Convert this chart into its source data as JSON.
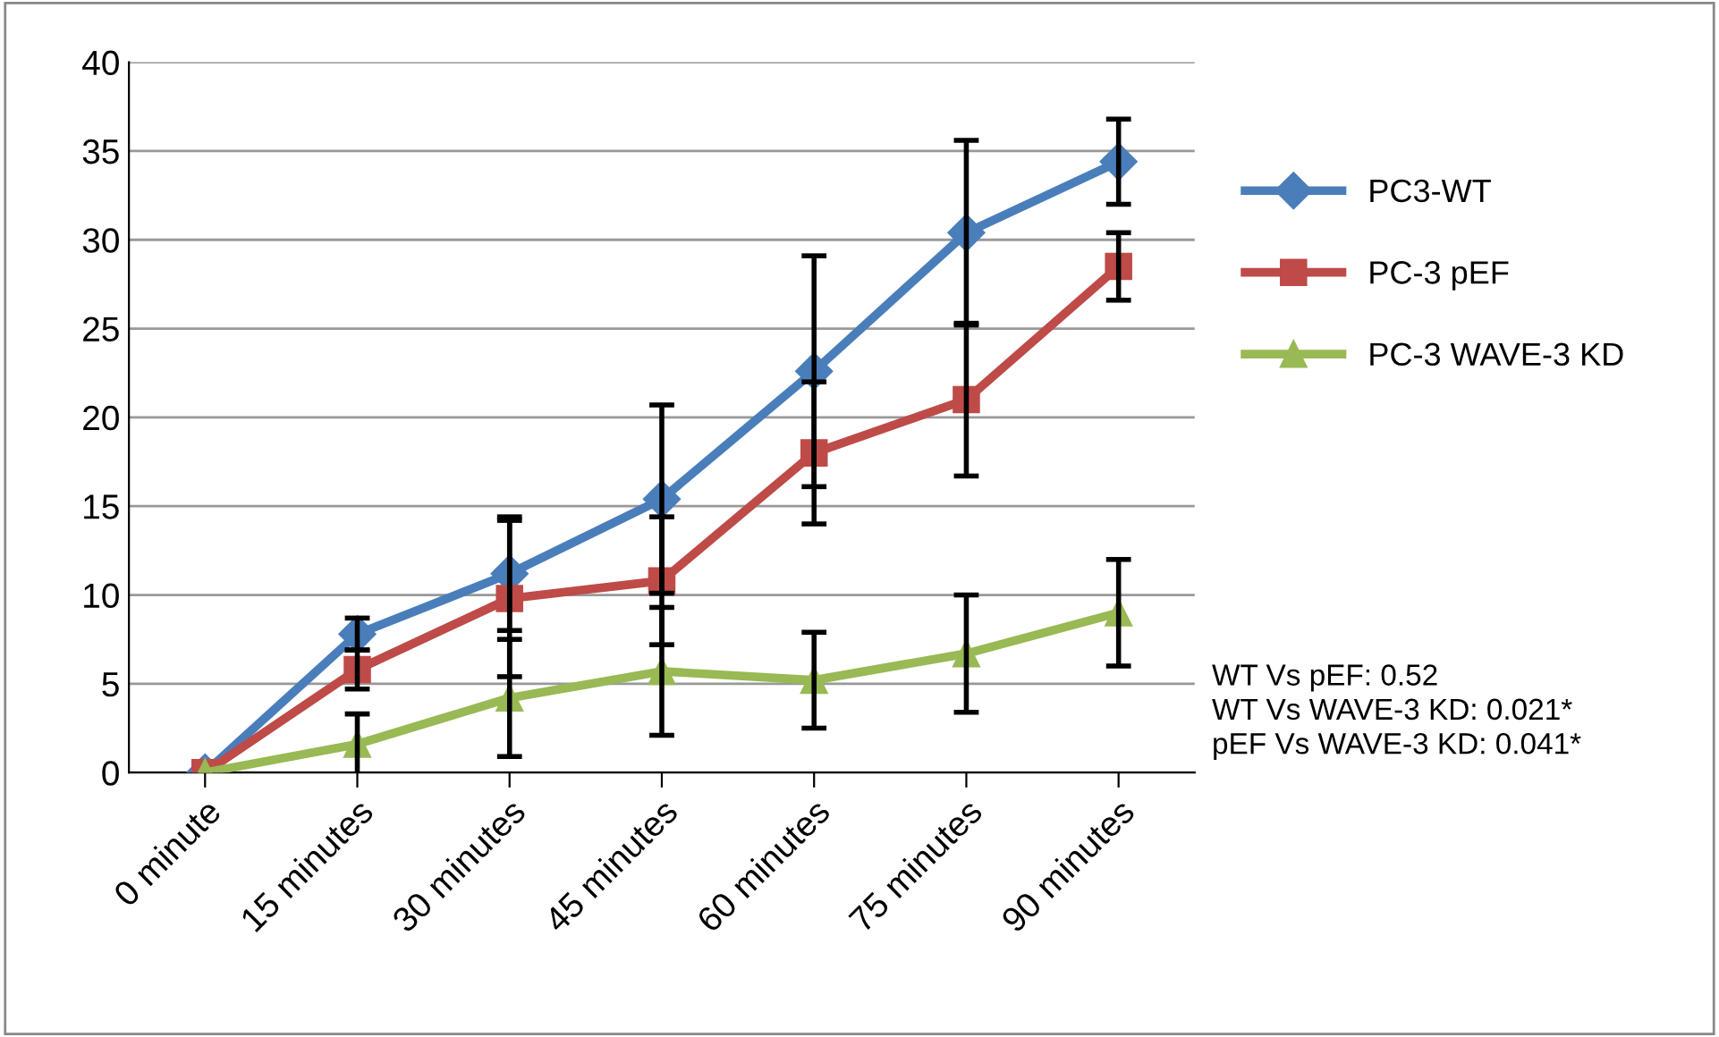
{
  "chart_data": {
    "type": "line",
    "categories": [
      "0 minute",
      "15 minutes",
      "30 minutes",
      "45 minutes",
      "60 minutes",
      "75 minutes",
      "90 minutes"
    ],
    "series": [
      {
        "name": "PC3-WT",
        "color": "#4a7ebb",
        "marker": "diamond",
        "values": [
          0,
          7.8,
          11.2,
          15.4,
          22.6,
          30.4,
          34.4
        ],
        "errors": [
          null,
          0.9,
          3.2,
          5.3,
          6.5,
          5.2,
          2.4
        ]
      },
      {
        "name": "PC-3 pEF",
        "color": "#be4b48",
        "marker": "square",
        "values": [
          0,
          5.8,
          9.8,
          10.8,
          18.0,
          21.0,
          28.5
        ],
        "errors": [
          null,
          1.1,
          4.4,
          3.6,
          4.0,
          4.3,
          1.9
        ]
      },
      {
        "name": "PC-3 WAVE-3 KD",
        "color": "#98b954",
        "marker": "triangle",
        "values": [
          0,
          1.6,
          4.2,
          5.7,
          5.2,
          6.7,
          9.0
        ],
        "errors": [
          null,
          1.7,
          3.3,
          3.6,
          2.7,
          3.3,
          3.0
        ]
      }
    ],
    "ylim": [
      0,
      40
    ],
    "yticks": [
      0,
      5,
      10,
      15,
      20,
      25,
      30,
      35,
      40
    ],
    "grid": "y",
    "legend": "right",
    "line_style": "solid",
    "annotations": [
      "WT Vs pEF: 0.52\nWT Vs WAVE-3 KD: 0.021*\npEF Vs WAVE-3 KD: 0.041*"
    ]
  }
}
